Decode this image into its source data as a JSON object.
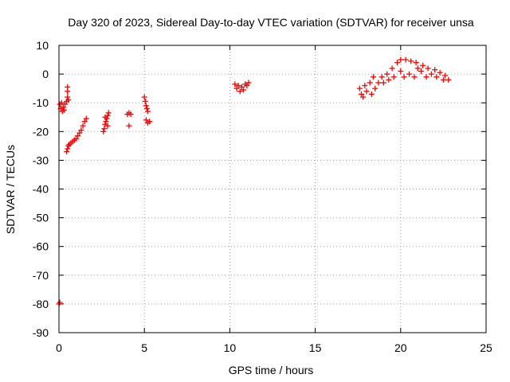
{
  "chart_data": {
    "type": "scatter",
    "title": "Day 320 of 2023, Sidereal Day-to-day VTEC variation (SDTVAR) for receiver unsa",
    "xlabel": "GPS time / hours",
    "ylabel": "SDTVAR / TECUs",
    "xlim": [
      0,
      25
    ],
    "ylim": [
      -90,
      10
    ],
    "xticks": [
      0,
      5,
      10,
      15,
      20,
      25
    ],
    "yticks": [
      10,
      0,
      -10,
      -20,
      -30,
      -40,
      -50,
      -60,
      -70,
      -80,
      -90
    ],
    "grid": true,
    "marker": "+",
    "color": "#ff0000",
    "series": [
      {
        "name": "SDTVAR",
        "points": [
          [
            0.0,
            -80.0
          ],
          [
            0.05,
            -79.5
          ],
          [
            0.05,
            -10.5
          ],
          [
            0.1,
            -12.0
          ],
          [
            0.15,
            -10.0
          ],
          [
            0.2,
            -13.0
          ],
          [
            0.25,
            -11.5
          ],
          [
            0.3,
            -12.5
          ],
          [
            0.35,
            -10.5
          ],
          [
            0.45,
            -9.5
          ],
          [
            0.5,
            -8.0
          ],
          [
            0.5,
            -6.0
          ],
          [
            0.5,
            -4.5
          ],
          [
            0.55,
            -9.0
          ],
          [
            0.45,
            -27.0
          ],
          [
            0.5,
            -26.0
          ],
          [
            0.55,
            -25.0
          ],
          [
            0.6,
            -24.5
          ],
          [
            0.7,
            -24.0
          ],
          [
            0.8,
            -23.5
          ],
          [
            0.9,
            -23.0
          ],
          [
            1.0,
            -22.5
          ],
          [
            1.1,
            -21.5
          ],
          [
            1.2,
            -20.5
          ],
          [
            1.3,
            -19.5
          ],
          [
            1.4,
            -18.0
          ],
          [
            1.5,
            -16.5
          ],
          [
            1.6,
            -15.5
          ],
          [
            2.6,
            -20.0
          ],
          [
            2.65,
            -19.0
          ],
          [
            2.7,
            -17.5
          ],
          [
            2.75,
            -16.5
          ],
          [
            2.8,
            -15.5
          ],
          [
            2.85,
            -14.5
          ],
          [
            2.9,
            -13.5
          ],
          [
            2.7,
            -15.0
          ],
          [
            2.85,
            -18.0
          ],
          [
            4.0,
            -14.0
          ],
          [
            4.1,
            -13.5
          ],
          [
            4.2,
            -14.0
          ],
          [
            4.1,
            -18.0
          ],
          [
            5.0,
            -8.0
          ],
          [
            5.05,
            -9.5
          ],
          [
            5.1,
            -11.0
          ],
          [
            5.15,
            -12.0
          ],
          [
            5.2,
            -13.0
          ],
          [
            5.1,
            -16.0
          ],
          [
            5.2,
            -17.0
          ],
          [
            5.3,
            -16.5
          ],
          [
            10.3,
            -3.5
          ],
          [
            10.4,
            -5.0
          ],
          [
            10.5,
            -4.0
          ],
          [
            10.6,
            -6.0
          ],
          [
            10.7,
            -4.5
          ],
          [
            10.8,
            -5.5
          ],
          [
            10.9,
            -3.5
          ],
          [
            11.0,
            -4.0
          ],
          [
            11.1,
            -3.0
          ],
          [
            17.6,
            -5.0
          ],
          [
            17.7,
            -7.0
          ],
          [
            17.8,
            -8.0
          ],
          [
            17.9,
            -4.0
          ],
          [
            18.0,
            -6.0
          ],
          [
            18.2,
            -3.0
          ],
          [
            18.3,
            -7.0
          ],
          [
            18.4,
            -1.0
          ],
          [
            18.5,
            -5.0
          ],
          [
            18.7,
            -3.0
          ],
          [
            18.9,
            -1.0
          ],
          [
            19.0,
            -3.0
          ],
          [
            19.2,
            0.0
          ],
          [
            19.3,
            -2.0
          ],
          [
            19.5,
            2.0
          ],
          [
            19.6,
            -1.0
          ],
          [
            19.8,
            4.0
          ],
          [
            20.0,
            1.0
          ],
          [
            20.0,
            5.0
          ],
          [
            20.2,
            -1.0
          ],
          [
            20.3,
            5.0
          ],
          [
            20.5,
            0.0
          ],
          [
            20.6,
            4.5
          ],
          [
            20.8,
            -1.0
          ],
          [
            20.9,
            4.0
          ],
          [
            21.0,
            2.0
          ],
          [
            21.2,
            1.0
          ],
          [
            21.3,
            3.0
          ],
          [
            21.5,
            -1.0
          ],
          [
            21.6,
            2.0
          ],
          [
            21.8,
            0.0
          ],
          [
            22.0,
            1.5
          ],
          [
            22.1,
            -1.0
          ],
          [
            22.3,
            0.5
          ],
          [
            22.5,
            -2.0
          ],
          [
            22.6,
            -0.5
          ],
          [
            22.8,
            -2.0
          ]
        ]
      }
    ]
  }
}
